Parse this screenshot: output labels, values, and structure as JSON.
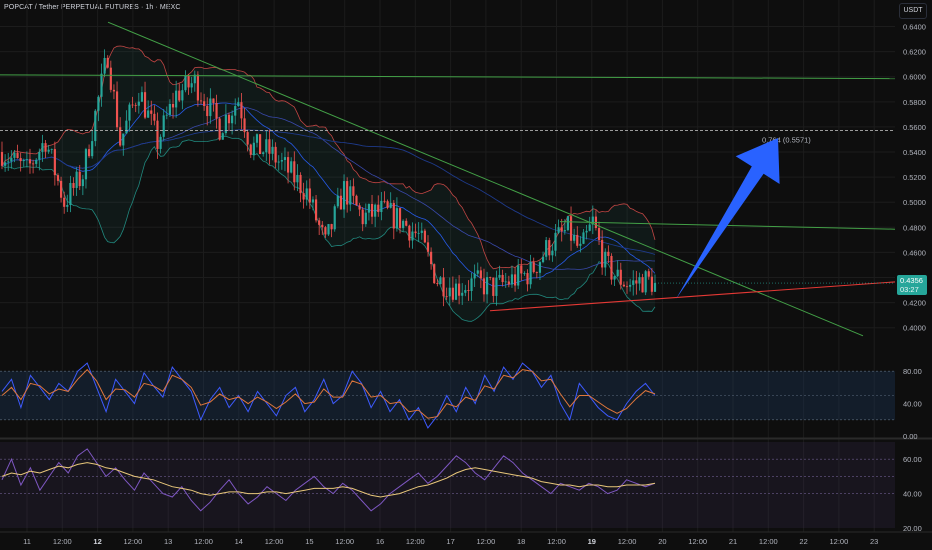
{
  "header": {
    "title": "POPCAT / Tether PERPETUAL FUTURES · 1h · MEXC",
    "currency": "USDT"
  },
  "colors": {
    "bg": "#0e0e0e",
    "up": "#26a69a",
    "down": "#ef5350",
    "grid": "#1c1c1c",
    "trend_green": "#43a047",
    "support_red": "#e53935",
    "arrow_blue": "#2962ff",
    "bb_fill": "#26a69a",
    "rsi_fast": "#3d5afe",
    "rsi_slow": "#e0773c",
    "stoch_line": "#7e57c2",
    "stoch_signal": "#e8c77a",
    "price_label_bg": "#26a69a"
  },
  "chart_data": [
    {
      "type": "candlestick",
      "symbol": "POPCAT/USDT",
      "timeframe": "1h",
      "y_ticks": [
        "0.6400",
        "0.6200",
        "0.6000",
        "0.5800",
        "0.5600",
        "0.5400",
        "0.5200",
        "0.5000",
        "0.4800",
        "0.4600",
        "0.4400",
        "0.4200",
        "0.4000"
      ],
      "ylim": [
        0.387,
        0.65
      ],
      "x_ticks": [
        "11",
        "12:00",
        "12",
        "12:00",
        "13",
        "12:00",
        "14",
        "12:00",
        "15",
        "12:00",
        "16",
        "12:00",
        "17",
        "12:00",
        "18",
        "12:00",
        "19",
        "12:00",
        "20",
        "12:00",
        "21",
        "12:00",
        "22",
        "12:00",
        "23"
      ],
      "x_ticks_bold": [
        "12",
        "19"
      ],
      "last_price": "0.4356",
      "countdown": "03:27",
      "fib_level": {
        "label": "0.764 (0.5571)",
        "price": 0.5571
      },
      "horizontal_level": 0.5985,
      "anchors": [
        [
          0,
          0.54
        ],
        [
          8,
          0.525
        ],
        [
          14,
          0.55
        ],
        [
          20,
          0.5
        ],
        [
          26,
          0.522
        ],
        [
          34,
          0.618
        ],
        [
          38,
          0.548
        ],
        [
          44,
          0.59
        ],
        [
          50,
          0.548
        ],
        [
          56,
          0.586
        ],
        [
          62,
          0.596
        ],
        [
          70,
          0.56
        ],
        [
          76,
          0.582
        ],
        [
          80,
          0.545
        ],
        [
          86,
          0.54
        ],
        [
          92,
          0.525
        ],
        [
          98,
          0.508
        ],
        [
          104,
          0.466
        ],
        [
          110,
          0.51
        ],
        [
          116,
          0.488
        ],
        [
          122,
          0.493
        ],
        [
          128,
          0.486
        ],
        [
          134,
          0.473
        ],
        [
          140,
          0.438
        ],
        [
          146,
          0.432
        ],
        [
          152,
          0.436
        ],
        [
          158,
          0.432
        ],
        [
          164,
          0.438
        ],
        [
          170,
          0.444
        ],
        [
          176,
          0.466
        ],
        [
          182,
          0.478
        ],
        [
          186,
          0.46
        ],
        [
          190,
          0.484
        ],
        [
          194,
          0.45
        ],
        [
          198,
          0.44
        ],
        [
          202,
          0.434
        ],
        [
          206,
          0.438
        ],
        [
          210,
          0.436
        ]
      ]
    },
    {
      "type": "line",
      "name": "RSI panel",
      "y_ticks": [
        "80.00",
        "40.00",
        "0.00"
      ],
      "ylim": [
        0,
        100
      ],
      "band": [
        20,
        80
      ],
      "series": [
        {
          "values": [
            55,
            70,
            35,
            75,
            60,
            45,
            65,
            55,
            80,
            90,
            60,
            30,
            70,
            55,
            40,
            78,
            62,
            48,
            85,
            70,
            55,
            20,
            45,
            60,
            35,
            50,
            30,
            55,
            40,
            25,
            50,
            60,
            30,
            45,
            70,
            40,
            50,
            80,
            65,
            35,
            55,
            30,
            45,
            20,
            35,
            10,
            25,
            50,
            30,
            60,
            40,
            75,
            55,
            85,
            70,
            90,
            80,
            60,
            75,
            40,
            20,
            65,
            50,
            35,
            25,
            20,
            40,
            55,
            65,
            50
          ]
        },
        {
          "values": [
            50,
            60,
            45,
            65,
            62,
            52,
            58,
            55,
            70,
            82,
            68,
            45,
            58,
            57,
            48,
            65,
            62,
            55,
            75,
            70,
            60,
            38,
            42,
            52,
            45,
            48,
            40,
            48,
            42,
            34,
            42,
            52,
            40,
            42,
            58,
            48,
            48,
            68,
            64,
            48,
            50,
            40,
            42,
            30,
            32,
            22,
            24,
            40,
            36,
            48,
            44,
            62,
            58,
            75,
            72,
            82,
            80,
            68,
            70,
            52,
            36,
            50,
            50,
            42,
            34,
            28,
            34,
            46,
            56,
            52
          ]
        }
      ]
    },
    {
      "type": "line",
      "name": "Stochastic RSI panel",
      "y_ticks": [
        "60.00",
        "40.00",
        "20.00"
      ],
      "ylim": [
        20,
        70
      ],
      "series": [
        {
          "values": [
            48,
            60,
            45,
            55,
            42,
            50,
            58,
            52,
            62,
            66,
            58,
            50,
            55,
            48,
            42,
            52,
            46,
            40,
            38,
            44,
            36,
            30,
            35,
            42,
            48,
            40,
            34,
            38,
            44,
            40,
            36,
            42,
            46,
            50,
            44,
            40,
            46,
            42,
            36,
            30,
            34,
            40,
            44,
            48,
            52,
            46,
            50,
            56,
            62,
            58,
            52,
            48,
            55,
            62,
            58,
            52,
            48,
            44,
            40,
            46,
            44,
            42,
            46,
            44,
            40,
            42,
            48,
            46,
            44,
            46
          ]
        },
        {
          "values": [
            50,
            52,
            51,
            53,
            52,
            54,
            56,
            55,
            57,
            58,
            57,
            55,
            54,
            52,
            50,
            49,
            48,
            46,
            44,
            43,
            42,
            40,
            39,
            40,
            41,
            41,
            40,
            40,
            41,
            41,
            40,
            41,
            42,
            43,
            43,
            43,
            44,
            43,
            41,
            39,
            38,
            39,
            40,
            42,
            44,
            45,
            47,
            49,
            52,
            54,
            55,
            54,
            53,
            52,
            51,
            50,
            49,
            47,
            46,
            45,
            45,
            44,
            45,
            45,
            44,
            44,
            45,
            45,
            45,
            46
          ]
        }
      ]
    }
  ]
}
